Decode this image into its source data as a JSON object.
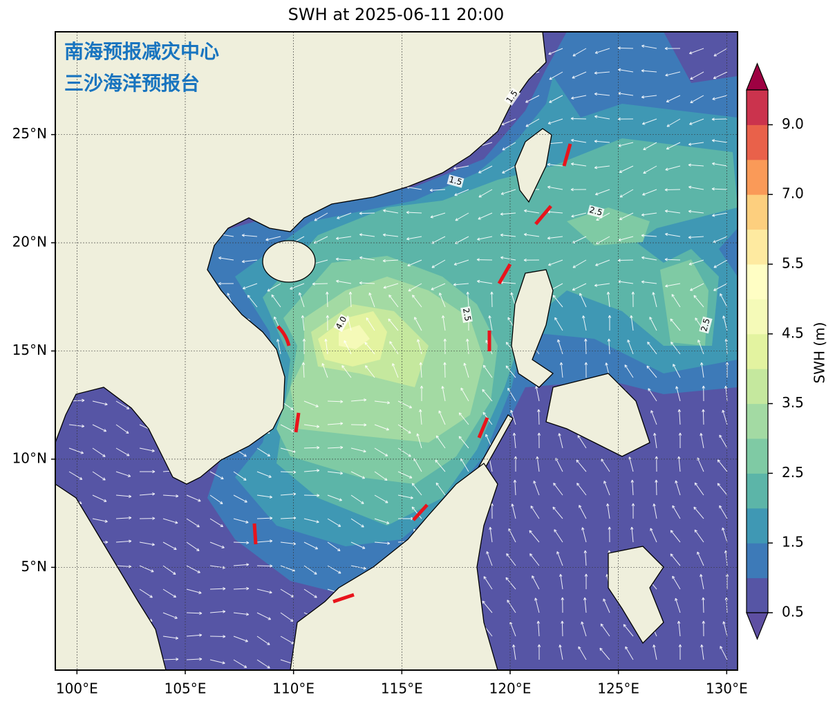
{
  "title": "SWH at 2025-06-11 20:00",
  "watermark": [
    "南海预报减灾中心",
    "三沙海洋预报台"
  ],
  "map": {
    "xlim": [
      99,
      130.5
    ],
    "ylim": [
      0.25,
      29.75
    ],
    "xticks": [
      {
        "value": 100,
        "label": "100°E"
      },
      {
        "value": 105,
        "label": "105°E"
      },
      {
        "value": 110,
        "label": "110°E"
      },
      {
        "value": 115,
        "label": "115°E"
      },
      {
        "value": 120,
        "label": "120°E"
      },
      {
        "value": 125,
        "label": "125°E"
      },
      {
        "value": 130,
        "label": "130°E"
      }
    ],
    "yticks": [
      {
        "value": 5,
        "label": "5°N"
      },
      {
        "value": 10,
        "label": "10°N"
      },
      {
        "value": 15,
        "label": "15°N"
      },
      {
        "value": 20,
        "label": "20°N"
      },
      {
        "value": 25,
        "label": "25°N"
      }
    ],
    "grid": true,
    "contour_labels": [
      "1.5",
      "1.5",
      "2.5",
      "2.5",
      "2.5",
      "4.0"
    ]
  },
  "colorbar": {
    "label": "SWH (m)",
    "levels": [
      0.5,
      1,
      1.5,
      2,
      2.5,
      3,
      3.5,
      4,
      4.5,
      5,
      5.5,
      6,
      7,
      8,
      9,
      10
    ],
    "colors": [
      "#5655a5",
      "#3d7ab8",
      "#3f98b4",
      "#5cb5a8",
      "#7fcaa4",
      "#a3daa3",
      "#c5e89e",
      "#e3f3a0",
      "#f5fab8",
      "#fffec4",
      "#feeaa0",
      "#fdcf7e",
      "#fa9a58",
      "#e9614a",
      "#cb334d"
    ],
    "under_color": "#5e4fa2",
    "over_color": "#9e0142",
    "ticks": [
      0.5,
      1.5,
      2.5,
      3.5,
      4.5,
      5.5,
      {
        "value": 7,
        "label": "7.0"
      },
      {
        "value": 9,
        "label": "9.0"
      }
    ]
  }
}
